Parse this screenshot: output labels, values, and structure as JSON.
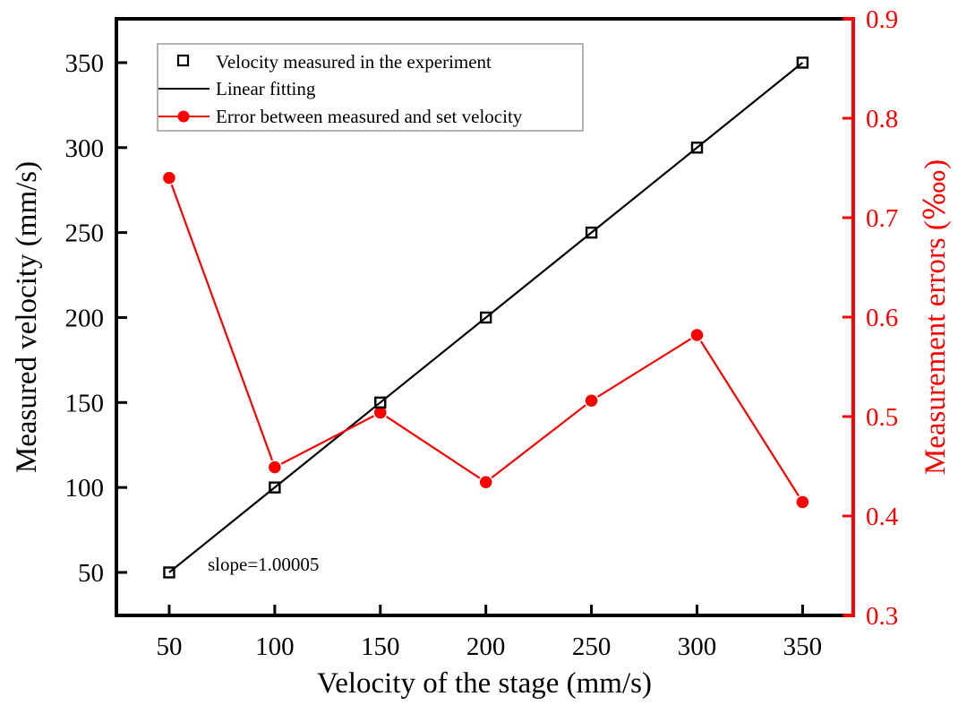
{
  "chart_data": {
    "type": "line",
    "title": "",
    "xlabel": "Velocity of the stage (mm/s)",
    "ylabel": "Measured velocity (mm/s)",
    "y2label": "Measurement errors (‱)",
    "xlim": [
      25,
      374
    ],
    "ylim": [
      24.7,
      375.8
    ],
    "y2lim": [
      0.3,
      0.9
    ],
    "xticks": [
      50,
      100,
      150,
      200,
      250,
      300,
      350
    ],
    "yticks": [
      50,
      100,
      150,
      200,
      250,
      300,
      350
    ],
    "y2ticks": [
      0.3,
      0.4,
      0.5,
      0.6,
      0.7,
      0.8,
      0.9
    ],
    "xtick_labels": [
      "50",
      "100",
      "150",
      "200",
      "250",
      "300",
      "350"
    ],
    "ytick_labels": [
      "50",
      "100",
      "150",
      "200",
      "250",
      "300",
      "350"
    ],
    "y2tick_labels": [
      "0.3",
      "0.4",
      "0.5",
      "0.6",
      "0.7",
      "0.8",
      "0.9"
    ],
    "grid": false,
    "legend_position": "top-left",
    "x": [
      50,
      100,
      150,
      200,
      250,
      300,
      350
    ],
    "series": [
      {
        "name": "Velocity measured in the experiment",
        "axis": "left",
        "kind": "scatter",
        "marker": "open-square",
        "color": "#000000",
        "values": [
          50,
          100,
          150,
          200,
          250,
          300,
          350
        ]
      },
      {
        "name": "Linear fitting",
        "axis": "left",
        "kind": "line",
        "color": "#000000",
        "slope": 1.00005,
        "values": [
          50,
          100,
          150,
          200,
          250,
          300,
          350
        ]
      },
      {
        "name": "Error between measured and set velocity",
        "axis": "right",
        "kind": "line-marker",
        "marker": "filled-circle",
        "color": "#ff0000",
        "values": [
          0.74,
          0.449,
          0.504,
          0.434,
          0.516,
          0.582,
          0.414
        ]
      }
    ],
    "annotations": [
      {
        "text": "slope=1.00005",
        "x": 68,
        "y": 50
      }
    ],
    "colors": {
      "axis": "#000000",
      "right_axis": "#ff0000",
      "legend_border": "#808080"
    }
  }
}
